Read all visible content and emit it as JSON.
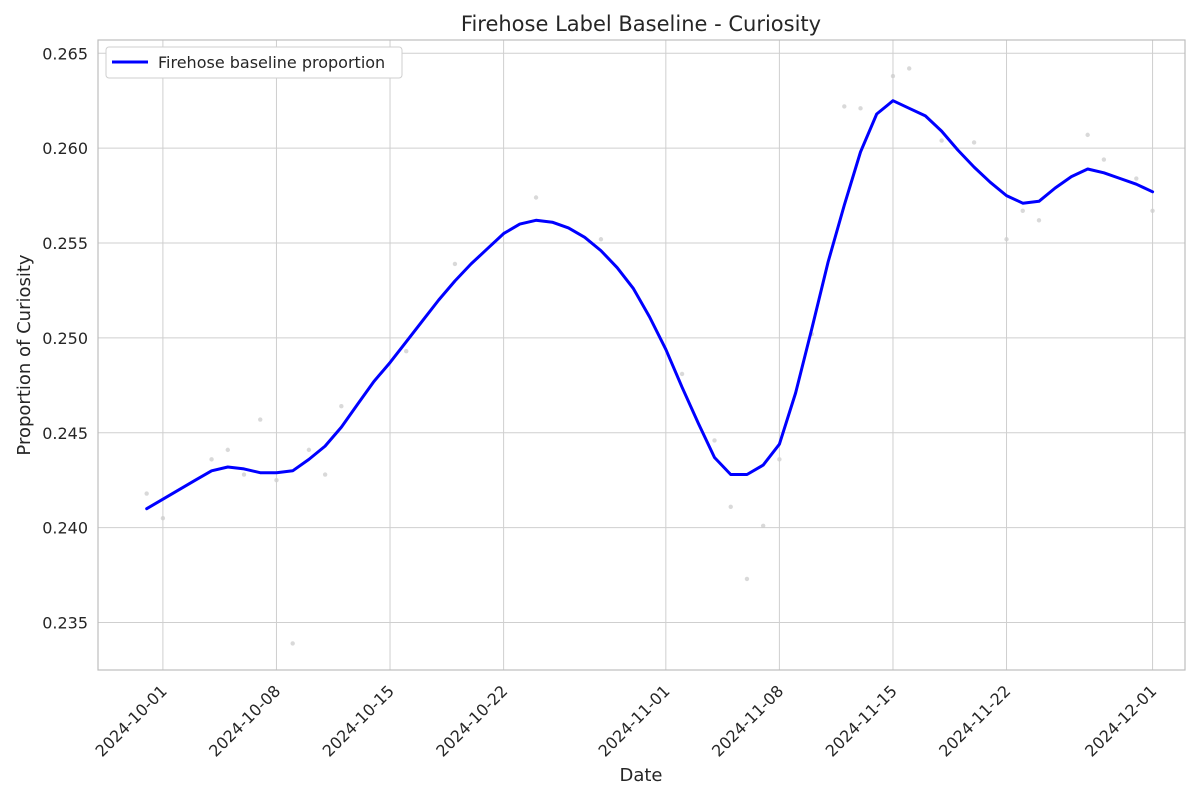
{
  "chart_data": {
    "type": "line",
    "title": "Firehose Label Baseline - Curiosity",
    "xlabel": "Date",
    "ylabel": "Proportion of Curiosity",
    "x_axis_type": "date",
    "xlim": [
      "2024-09-27",
      "2024-12-03"
    ],
    "ylim": [
      0.2325,
      0.2657
    ],
    "x_ticks": [
      "2024-10-01",
      "2024-10-08",
      "2024-10-15",
      "2024-10-22",
      "2024-11-01",
      "2024-11-08",
      "2024-11-15",
      "2024-11-22",
      "2024-12-01"
    ],
    "y_ticks": [
      0.235,
      0.24,
      0.245,
      0.25,
      0.255,
      0.26,
      0.265
    ],
    "y_tick_labels": [
      "0.235",
      "0.240",
      "0.245",
      "0.250",
      "0.255",
      "0.260",
      "0.265"
    ],
    "grid": true,
    "legend_position": "top-left",
    "legend": [
      "Firehose baseline proportion"
    ],
    "colors": {
      "line": "#0000ff",
      "scatter": "#cccccc",
      "grid": "#cfcfcf",
      "axis": "#bdbdbd",
      "text": "#262626"
    },
    "series": [
      {
        "name": "Firehose baseline proportion",
        "kind": "line",
        "x": [
          "2024-09-30",
          "2024-10-01",
          "2024-10-02",
          "2024-10-03",
          "2024-10-04",
          "2024-10-05",
          "2024-10-06",
          "2024-10-07",
          "2024-10-08",
          "2024-10-09",
          "2024-10-10",
          "2024-10-11",
          "2024-10-12",
          "2024-10-13",
          "2024-10-14",
          "2024-10-15",
          "2024-10-16",
          "2024-10-17",
          "2024-10-18",
          "2024-10-19",
          "2024-10-20",
          "2024-10-21",
          "2024-10-22",
          "2024-10-23",
          "2024-10-24",
          "2024-10-25",
          "2024-10-26",
          "2024-10-27",
          "2024-10-28",
          "2024-10-29",
          "2024-10-30",
          "2024-10-31",
          "2024-11-01",
          "2024-11-02",
          "2024-11-03",
          "2024-11-04",
          "2024-11-05",
          "2024-11-06",
          "2024-11-07",
          "2024-11-08",
          "2024-11-09",
          "2024-11-10",
          "2024-11-11",
          "2024-11-12",
          "2024-11-13",
          "2024-11-14",
          "2024-11-15",
          "2024-11-16",
          "2024-11-17",
          "2024-11-18",
          "2024-11-19",
          "2024-11-20",
          "2024-11-21",
          "2024-11-22",
          "2024-11-23",
          "2024-11-24",
          "2024-11-25",
          "2024-11-26",
          "2024-11-27",
          "2024-11-28",
          "2024-11-29",
          "2024-11-30",
          "2024-12-01"
        ],
        "y": [
          0.241,
          0.2415,
          0.242,
          0.2425,
          0.243,
          0.2432,
          0.2431,
          0.2429,
          0.2429,
          0.243,
          0.2436,
          0.2443,
          0.2453,
          0.2465,
          0.2477,
          0.2487,
          0.2498,
          0.2509,
          0.252,
          0.253,
          0.2539,
          0.2547,
          0.2555,
          0.256,
          0.2562,
          0.2561,
          0.2558,
          0.2553,
          0.2546,
          0.2537,
          0.2526,
          0.2511,
          0.2494,
          0.2474,
          0.2455,
          0.2437,
          0.2428,
          0.2428,
          0.2433,
          0.2444,
          0.2471,
          0.2505,
          0.254,
          0.257,
          0.2598,
          0.2618,
          0.2625,
          0.2621,
          0.2617,
          0.2609,
          0.2599,
          0.259,
          0.2582,
          0.2575,
          0.2571,
          0.2572,
          0.2579,
          0.2585,
          0.2589,
          0.2587,
          0.2584,
          0.2581,
          0.2577
        ]
      },
      {
        "name": "",
        "kind": "scatter",
        "x": [
          "2024-09-30",
          "2024-10-01",
          "2024-10-04",
          "2024-10-05",
          "2024-10-06",
          "2024-10-07",
          "2024-10-08",
          "2024-10-09",
          "2024-10-10",
          "2024-10-11",
          "2024-10-12",
          "2024-10-16",
          "2024-10-19",
          "2024-10-24",
          "2024-10-28",
          "2024-11-02",
          "2024-11-04",
          "2024-11-05",
          "2024-11-06",
          "2024-11-07",
          "2024-11-08",
          "2024-11-10",
          "2024-11-12",
          "2024-11-13",
          "2024-11-15",
          "2024-11-16",
          "2024-11-18",
          "2024-11-20",
          "2024-11-22",
          "2024-11-23",
          "2024-11-24",
          "2024-11-27",
          "2024-11-28",
          "2024-11-30",
          "2024-12-01"
        ],
        "y": [
          0.2418,
          0.2405,
          0.2436,
          0.2441,
          0.2428,
          0.2457,
          0.2425,
          0.2339,
          0.2441,
          0.2428,
          0.2464,
          0.2493,
          0.2539,
          0.2574,
          0.2552,
          0.2481,
          0.2446,
          0.2411,
          0.2373,
          0.2401,
          0.2436,
          0.2502,
          0.2622,
          0.2621,
          0.2638,
          0.2642,
          0.2604,
          0.2603,
          0.2552,
          0.2567,
          0.2562,
          0.2607,
          0.2594,
          0.2584,
          0.2567
        ]
      }
    ]
  }
}
